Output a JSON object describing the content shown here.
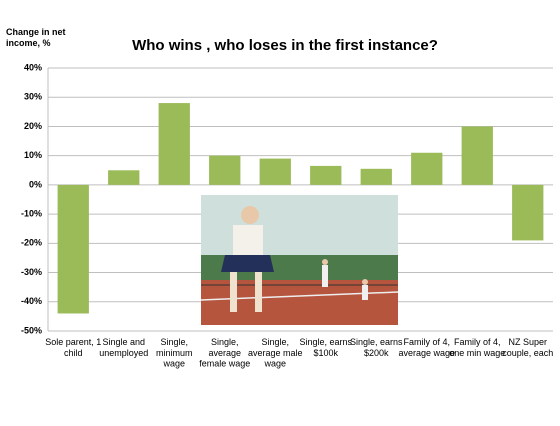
{
  "chart_data": {
    "type": "bar",
    "title": "Who wins , who loses in the first instance?",
    "y_label": "Change in net\nincome, %",
    "categories": [
      "Sole parent, 1\nchild",
      "Single and\nunemployed",
      "Single,\nminimum\nwage",
      "Single,\naverage\nfemale wage",
      "Single,\naverage male\nwage",
      "Single, earns\n$100k",
      "Single, earns\n$200k",
      "Family of 4,\naverage wage",
      "Family of 4,\none min wage",
      "NZ Super\ncouple, each"
    ],
    "values": [
      -44,
      5,
      28,
      10,
      9,
      6.5,
      5.5,
      11,
      20,
      -19
    ],
    "color": "#9bbb59",
    "ylim": [
      -50,
      40
    ],
    "yticks": [
      {
        "value": -50,
        "label": "-50%"
      },
      {
        "value": -40,
        "label": "-40%"
      },
      {
        "value": -30,
        "label": "-30%"
      },
      {
        "value": -20,
        "label": "-20%"
      },
      {
        "value": -10,
        "label": "-10%"
      },
      {
        "value": 0,
        "label": "0%"
      },
      {
        "value": 10,
        "label": "10%"
      },
      {
        "value": 20,
        "label": "20%"
      },
      {
        "value": 30,
        "label": "30%"
      },
      {
        "value": 40,
        "label": "40%"
      }
    ],
    "grid": true
  }
}
